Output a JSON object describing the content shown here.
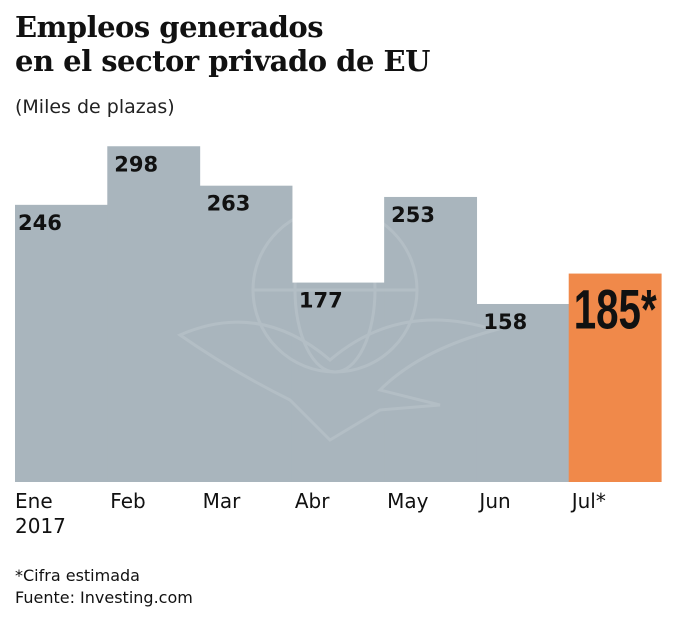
{
  "title_lines": [
    "Empleos generados",
    "en el sector privado de EU"
  ],
  "chart_data": {
    "type": "bar",
    "title": "Empleos generados en el sector privado de EU",
    "subtitle": "(Miles de plazas)",
    "categories": [
      "Ene\n2017",
      "Feb",
      "Mar",
      "Abr",
      "May",
      "Jun",
      "Jul*"
    ],
    "values": [
      246,
      298,
      263,
      177,
      253,
      158,
      185
    ],
    "data_labels": [
      "246",
      "298",
      "263",
      "177",
      "253",
      "158",
      "185*"
    ],
    "ylim": [
      0,
      300
    ],
    "grid": false,
    "colors": {
      "default": "#a9b5bd",
      "highlight": "#f0894a"
    },
    "highlight_index": 6
  },
  "footnotes": [
    "*Cifra estimada",
    "Fuente: Investing.com"
  ]
}
